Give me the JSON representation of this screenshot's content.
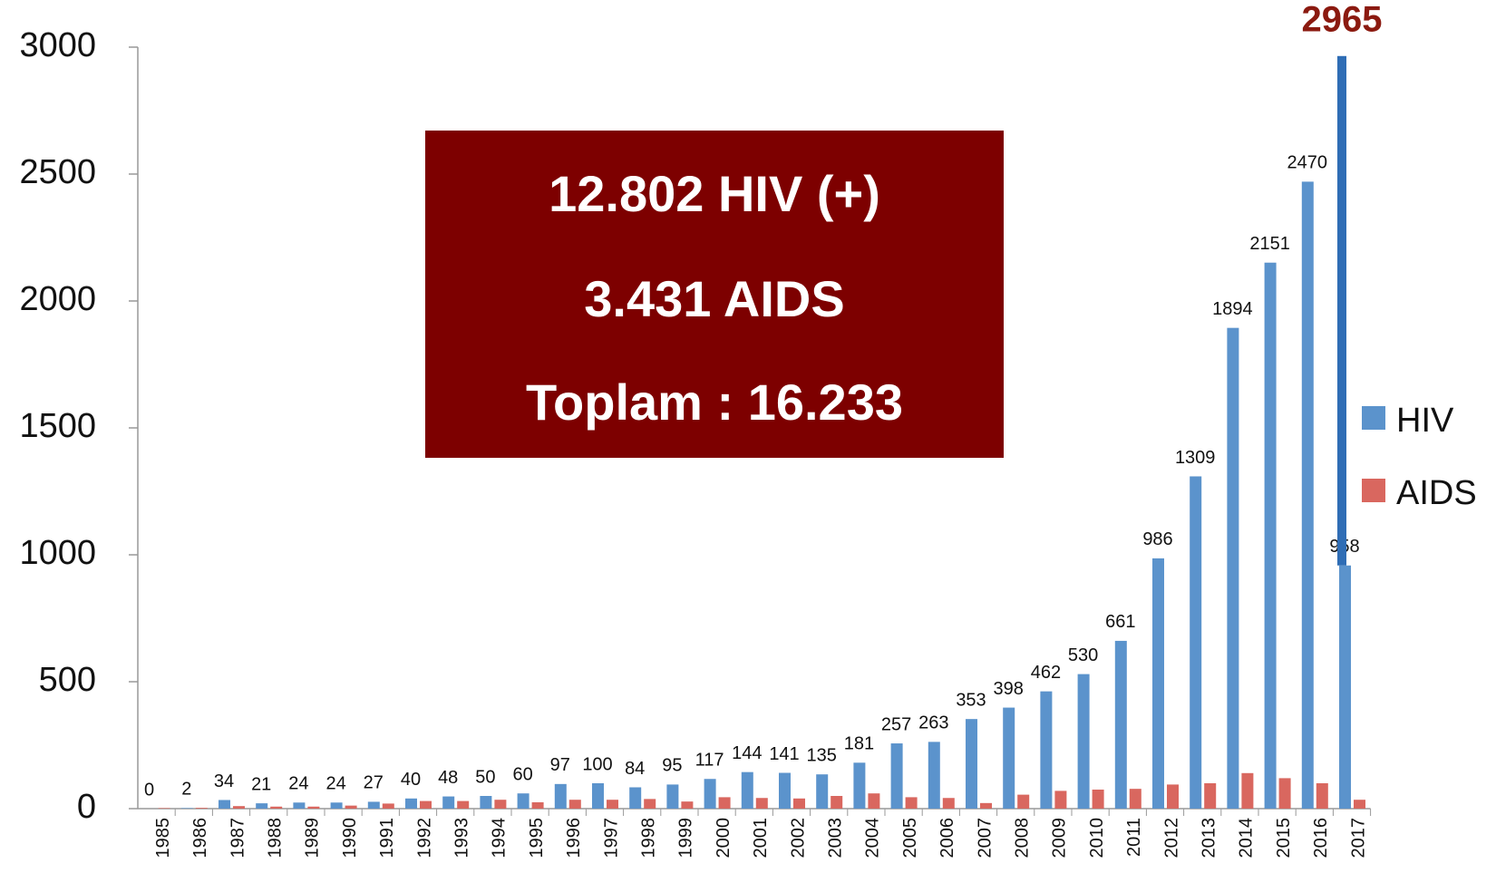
{
  "chart_data": {
    "type": "bar",
    "categories": [
      "1985",
      "1986",
      "1987",
      "1988",
      "1989",
      "1990",
      "1991",
      "1992",
      "1993",
      "1994",
      "1995",
      "1996",
      "1997",
      "1998",
      "1999",
      "2000",
      "2001",
      "2002",
      "2003",
      "2004",
      "2005",
      "2006",
      "2007",
      "2008",
      "2009",
      "2010",
      "2011",
      "2012",
      "2013",
      "2014",
      "2015",
      "2016",
      "2017"
    ],
    "series": [
      {
        "name": "HIV",
        "color": "#5b93cc",
        "values": [
          0,
          2,
          34,
          21,
          24,
          24,
          27,
          40,
          48,
          50,
          60,
          97,
          100,
          84,
          95,
          117,
          144,
          141,
          135,
          181,
          257,
          263,
          353,
          398,
          462,
          530,
          661,
          986,
          1309,
          1894,
          2151,
          2470,
          958
        ]
      },
      {
        "name": "AIDS",
        "color": "#d9675f",
        "values": [
          2,
          3,
          10,
          8,
          8,
          12,
          20,
          30,
          30,
          35,
          25,
          35,
          35,
          38,
          28,
          45,
          42,
          40,
          50,
          60,
          45,
          42,
          22,
          55,
          70,
          75,
          78,
          95,
          100,
          140,
          120,
          100,
          35
        ]
      }
    ],
    "annotations": [
      {
        "category": "2017",
        "value": 2965,
        "color": "#2f6db5"
      }
    ],
    "summary": [
      "12.802 HIV (+)",
      "3.431 AIDS",
      "Toplam : 16.233"
    ],
    "ylim": [
      0,
      3000
    ],
    "yticks": [
      0,
      500,
      1000,
      1500,
      2000,
      2500,
      3000
    ]
  }
}
